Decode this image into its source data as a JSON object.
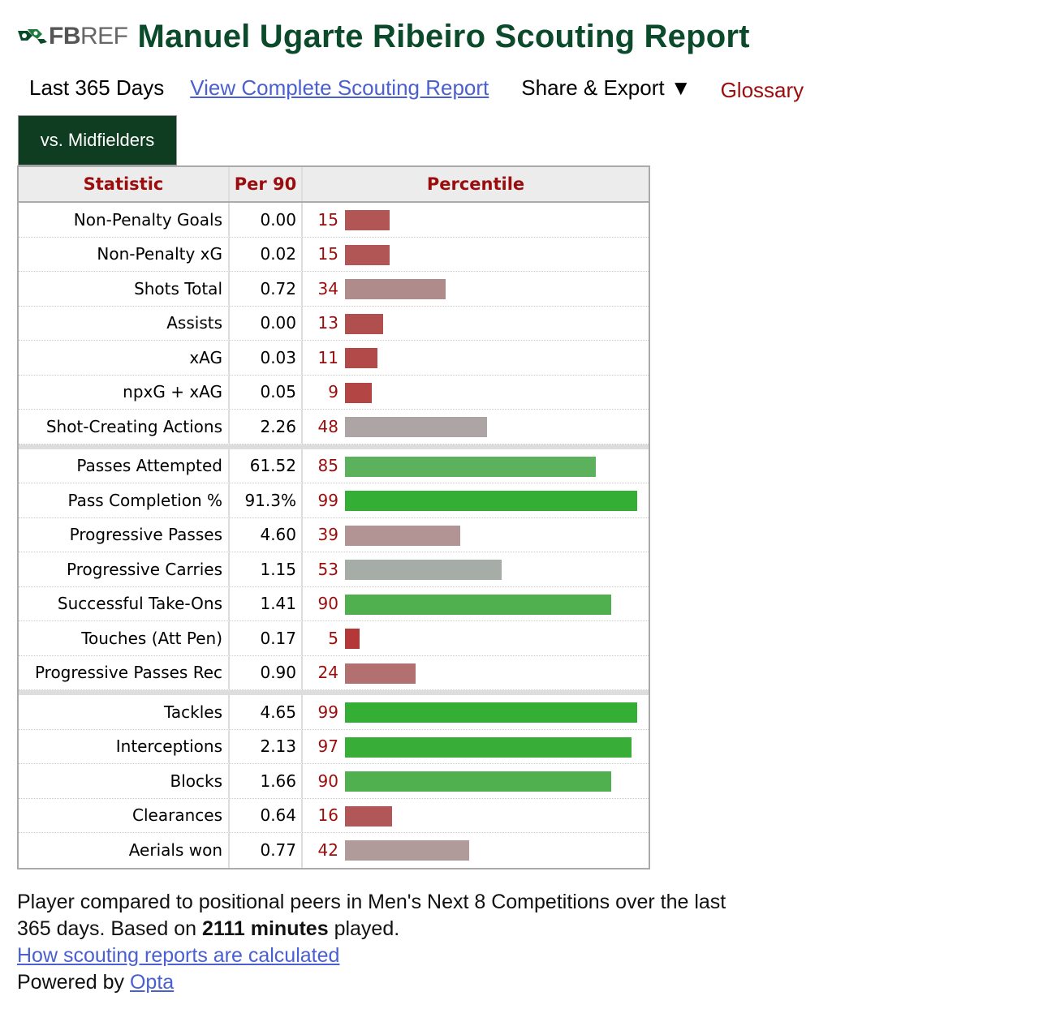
{
  "header": {
    "logo_fb": "FB",
    "logo_ref": "REF",
    "title": "Manuel Ugarte Ribeiro Scouting Report"
  },
  "subnav": {
    "period": "Last 365 Days",
    "full_report_link": "View Complete Scouting Report",
    "share_label": "Share & Export ▼",
    "glossary_label": "Glossary"
  },
  "tab": {
    "label": "vs. Midfielders"
  },
  "table": {
    "col_stat": "Statistic",
    "col_per90": "Per 90",
    "col_percentile": "Percentile"
  },
  "chart_data": {
    "type": "bar",
    "orientation": "horizontal",
    "value_label": "Percentile",
    "xlim": [
      0,
      100
    ],
    "colors": {
      "low": "#b03a3a",
      "mid": "#aaaaaa",
      "high": "#2fb030"
    },
    "groups": [
      {
        "rows": [
          {
            "stat": "Non-Penalty Goals",
            "per90": "0.00",
            "percentile": 15,
            "color": "#b25555"
          },
          {
            "stat": "Non-Penalty xG",
            "per90": "0.02",
            "percentile": 15,
            "color": "#b25555"
          },
          {
            "stat": "Shots Total",
            "per90": "0.72",
            "percentile": 34,
            "color": "#b08b8b"
          },
          {
            "stat": "Assists",
            "per90": "0.00",
            "percentile": 13,
            "color": "#b14f4f"
          },
          {
            "stat": "xAG",
            "per90": "0.03",
            "percentile": 11,
            "color": "#b24a4a"
          },
          {
            "stat": "npxG + xAG",
            "per90": "0.05",
            "percentile": 9,
            "color": "#b34545"
          },
          {
            "stat": "Shot-Creating Actions",
            "per90": "2.26",
            "percentile": 48,
            "color": "#ada5a5"
          }
        ]
      },
      {
        "rows": [
          {
            "stat": "Passes Attempted",
            "per90": "61.52",
            "percentile": 85,
            "color": "#5cb15c"
          },
          {
            "stat": "Pass Completion %",
            "per90": "91.3%",
            "percentile": 99,
            "color": "#34ae34"
          },
          {
            "stat": "Progressive Passes",
            "per90": "4.60",
            "percentile": 39,
            "color": "#b29494"
          },
          {
            "stat": "Progressive Carries",
            "per90": "1.15",
            "percentile": 53,
            "color": "#a6ada6"
          },
          {
            "stat": "Successful Take-Ons",
            "per90": "1.41",
            "percentile": 90,
            "color": "#50b050"
          },
          {
            "stat": "Touches (Att Pen)",
            "per90": "0.17",
            "percentile": 5,
            "color": "#b53838"
          },
          {
            "stat": "Progressive Passes Rec",
            "per90": "0.90",
            "percentile": 24,
            "color": "#b27070"
          }
        ]
      },
      {
        "rows": [
          {
            "stat": "Tackles",
            "per90": "4.65",
            "percentile": 99,
            "color": "#34ae34"
          },
          {
            "stat": "Interceptions",
            "per90": "2.13",
            "percentile": 97,
            "color": "#38ae38"
          },
          {
            "stat": "Blocks",
            "per90": "1.66",
            "percentile": 90,
            "color": "#50b050"
          },
          {
            "stat": "Clearances",
            "per90": "0.64",
            "percentile": 16,
            "color": "#b25757"
          },
          {
            "stat": "Aerials won",
            "per90": "0.77",
            "percentile": 42,
            "color": "#b09a9a"
          }
        ]
      }
    ]
  },
  "footer": {
    "line1": "Player compared to positional peers in Men's Next 8 Competitions over the last",
    "line2_pre": "365 days. Based on",
    "minutes": "2111 minutes",
    "line2_post": "played.",
    "how_link": "How scouting reports are calculated",
    "powered_pre": "Powered by",
    "powered_link": "Opta"
  }
}
